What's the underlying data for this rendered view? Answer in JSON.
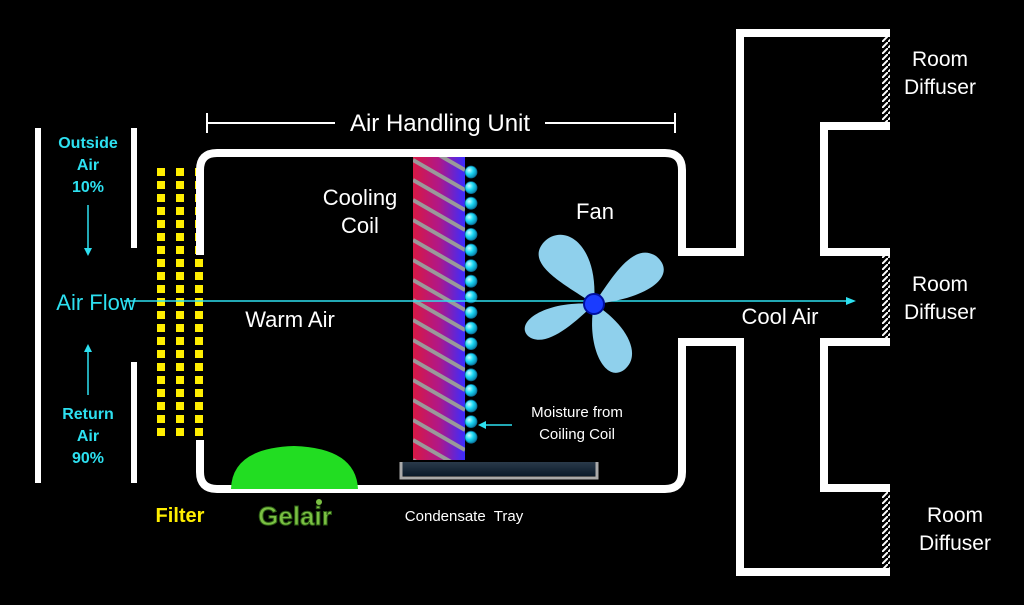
{
  "header": {
    "title": "Air Handling Unit"
  },
  "inlet": {
    "outside_air_label": "Outside",
    "outside_air_label2": "Air",
    "outside_air_pct": "10%",
    "air_flow_label": "Air Flow",
    "return_air_label": "Return",
    "return_air_label2": "Air",
    "return_air_pct": "90%"
  },
  "components": {
    "filter_label": "Filter",
    "warm_air_label": "Warm Air",
    "cooling_coil_line1": "Cooling",
    "cooling_coil_line2": "Coil",
    "fan_label": "Fan",
    "cool_air_label": "Cool Air",
    "moisture_line1": "Moisture from",
    "moisture_line2": "Coiling Coil",
    "tray_label": "Condensate  Tray",
    "logo_text": "Gelair"
  },
  "diffusers": [
    {
      "line1": "Room",
      "line2": "Diffuser"
    },
    {
      "line1": "Room",
      "line2": "Diffuser"
    },
    {
      "line1": "Room",
      "line2": "Diffuser"
    }
  ],
  "colors": {
    "accent": "#2de0f0",
    "filter": "#ffee00",
    "fan": "#8fd0ec",
    "fan_hub": "#1a3cff",
    "gel": "#22dd22",
    "outline": "#ffffff"
  }
}
